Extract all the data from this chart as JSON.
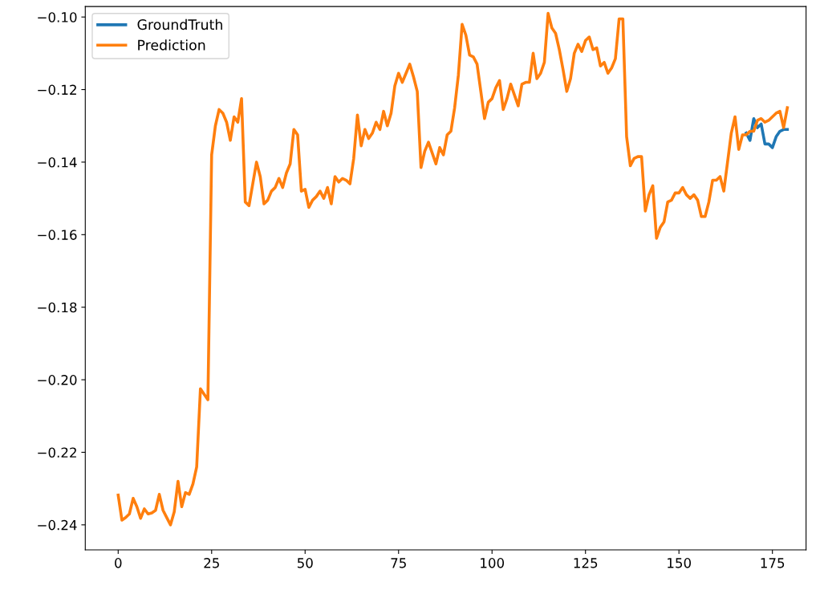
{
  "chart_data": {
    "type": "line",
    "x": [
      0,
      1,
      2,
      3,
      4,
      5,
      6,
      7,
      8,
      9,
      10,
      11,
      12,
      13,
      14,
      15,
      16,
      17,
      18,
      19,
      20,
      21,
      22,
      23,
      24,
      25,
      26,
      27,
      28,
      29,
      30,
      31,
      32,
      33,
      34,
      35,
      36,
      37,
      38,
      39,
      40,
      41,
      42,
      43,
      44,
      45,
      46,
      47,
      48,
      49,
      50,
      51,
      52,
      53,
      54,
      55,
      56,
      57,
      58,
      59,
      60,
      61,
      62,
      63,
      64,
      65,
      66,
      67,
      68,
      69,
      70,
      71,
      72,
      73,
      74,
      75,
      76,
      77,
      78,
      79,
      80,
      81,
      82,
      83,
      84,
      85,
      86,
      87,
      88,
      89,
      90,
      91,
      92,
      93,
      94,
      95,
      96,
      97,
      98,
      99,
      100,
      101,
      102,
      103,
      104,
      105,
      106,
      107,
      108,
      109,
      110,
      111,
      112,
      113,
      114,
      115,
      116,
      117,
      118,
      119,
      120,
      121,
      122,
      123,
      124,
      125,
      126,
      127,
      128,
      129,
      130,
      131,
      132,
      133,
      134,
      135,
      136,
      137,
      138,
      139,
      140,
      141,
      142,
      143,
      144,
      145,
      146,
      147,
      148,
      149,
      150,
      151,
      152,
      153,
      154,
      155,
      156,
      157,
      158,
      159,
      160,
      161,
      162,
      163,
      164,
      165,
      166,
      167,
      168,
      169,
      170,
      171,
      172,
      173,
      174,
      175,
      176,
      177,
      178,
      179
    ],
    "series": [
      {
        "name": "GroundTruth",
        "color": "#1f77b4",
        "x": [
          168,
          169,
          170,
          171,
          172,
          173,
          174,
          175,
          176,
          177,
          178,
          179
        ],
        "values": [
          -0.132,
          -0.134,
          -0.128,
          -0.1305,
          -0.1295,
          -0.135,
          -0.135,
          -0.136,
          -0.133,
          -0.1315,
          -0.131,
          -0.131
        ]
      },
      {
        "name": "Prediction",
        "color": "#ff7f0e",
        "values": [
          -0.2318,
          -0.2387,
          -0.238,
          -0.237,
          -0.2327,
          -0.235,
          -0.2382,
          -0.2356,
          -0.237,
          -0.2367,
          -0.236,
          -0.2316,
          -0.236,
          -0.238,
          -0.24,
          -0.2364,
          -0.228,
          -0.235,
          -0.2311,
          -0.2316,
          -0.2287,
          -0.224,
          -0.2025,
          -0.204,
          -0.2055,
          -0.138,
          -0.13,
          -0.1255,
          -0.1265,
          -0.129,
          -0.134,
          -0.1275,
          -0.129,
          -0.1225,
          -0.151,
          -0.152,
          -0.146,
          -0.14,
          -0.144,
          -0.1515,
          -0.1505,
          -0.148,
          -0.147,
          -0.1445,
          -0.147,
          -0.143,
          -0.1405,
          -0.131,
          -0.1325,
          -0.148,
          -0.1475,
          -0.1525,
          -0.1505,
          -0.1495,
          -0.148,
          -0.15,
          -0.147,
          -0.1515,
          -0.144,
          -0.1455,
          -0.1445,
          -0.145,
          -0.146,
          -0.139,
          -0.127,
          -0.1355,
          -0.131,
          -0.1335,
          -0.132,
          -0.129,
          -0.131,
          -0.126,
          -0.13,
          -0.1265,
          -0.119,
          -0.1155,
          -0.118,
          -0.1155,
          -0.113,
          -0.1165,
          -0.1205,
          -0.1415,
          -0.137,
          -0.1345,
          -0.1375,
          -0.1405,
          -0.136,
          -0.138,
          -0.1325,
          -0.1315,
          -0.125,
          -0.116,
          -0.102,
          -0.105,
          -0.1105,
          -0.111,
          -0.113,
          -0.1205,
          -0.128,
          -0.1235,
          -0.1225,
          -0.1195,
          -0.1175,
          -0.1255,
          -0.1225,
          -0.1185,
          -0.1215,
          -0.1245,
          -0.1185,
          -0.118,
          -0.118,
          -0.11,
          -0.117,
          -0.1155,
          -0.1125,
          -0.099,
          -0.103,
          -0.1045,
          -0.109,
          -0.1145,
          -0.1205,
          -0.117,
          -0.11,
          -0.1075,
          -0.1095,
          -0.1065,
          -0.1055,
          -0.109,
          -0.1085,
          -0.1135,
          -0.1125,
          -0.1155,
          -0.114,
          -0.1115,
          -0.1005,
          -0.1005,
          -0.133,
          -0.141,
          -0.139,
          -0.1385,
          -0.1385,
          -0.1535,
          -0.149,
          -0.1465,
          -0.161,
          -0.158,
          -0.1565,
          -0.151,
          -0.1505,
          -0.1485,
          -0.1485,
          -0.147,
          -0.149,
          -0.15,
          -0.149,
          -0.1505,
          -0.155,
          -0.155,
          -0.151,
          -0.145,
          -0.145,
          -0.144,
          -0.148,
          -0.14,
          -0.132,
          -0.1275,
          -0.1365,
          -0.1325,
          -0.1325,
          -0.1315,
          -0.1315,
          -0.1285,
          -0.128,
          -0.129,
          -0.1285,
          -0.1275,
          -0.1265,
          -0.126,
          -0.1305,
          -0.125
        ]
      }
    ],
    "xlim": [
      -8.8,
      184.0
    ],
    "xticks": [
      0,
      25,
      50,
      75,
      100,
      125,
      150,
      175
    ],
    "ylim": [
      -0.2469,
      -0.0971
    ],
    "yticks": [
      {
        "value": -0.24,
        "label": "−0.24"
      },
      {
        "value": -0.22,
        "label": "−0.22"
      },
      {
        "value": -0.2,
        "label": "−0.20"
      },
      {
        "value": -0.18,
        "label": "−0.18"
      },
      {
        "value": -0.16,
        "label": "−0.16"
      },
      {
        "value": -0.14,
        "label": "−0.14"
      },
      {
        "value": -0.12,
        "label": "−0.12"
      },
      {
        "value": -0.1,
        "label": "−0.10"
      }
    ],
    "legend": "top left",
    "grid": false,
    "marker": "none",
    "line_style": "solid"
  }
}
